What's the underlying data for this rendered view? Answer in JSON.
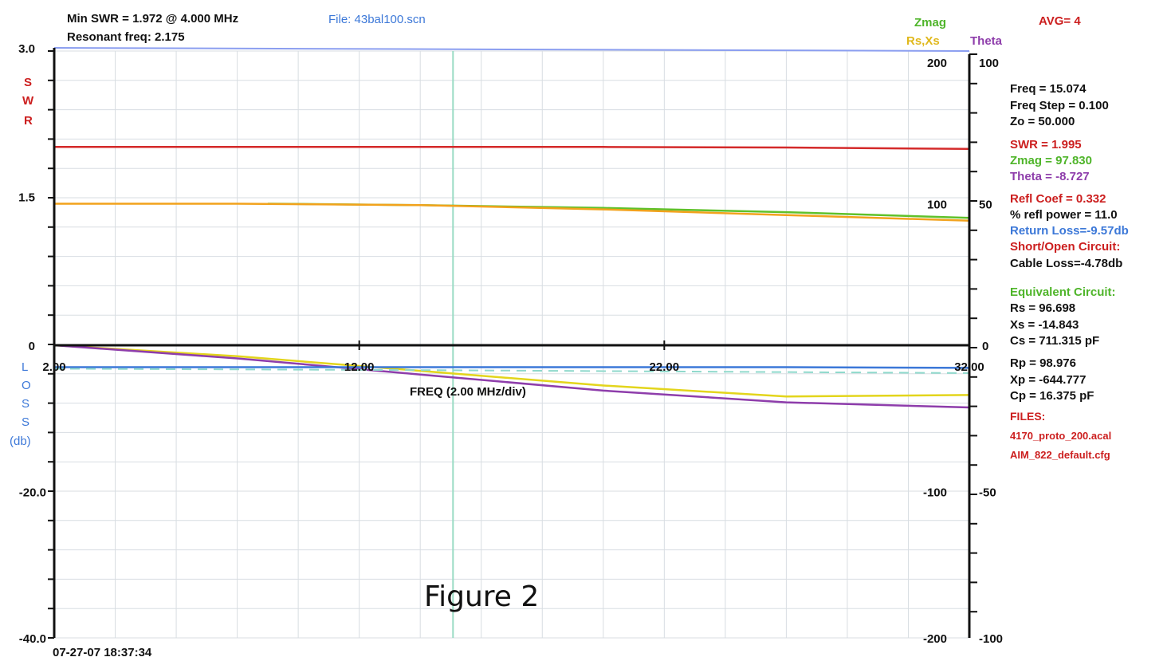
{
  "header": {
    "min_swr": "Min SWR = 1.972 @ 4.000 MHz",
    "resonant_freq": "Resonant freq: 2.175",
    "file": "File: 43bal100.scn",
    "avg": "AVG= 4",
    "zmag_legend": "Zmag",
    "rsxs_legend": "Rs,Xs",
    "theta_legend": "Theta"
  },
  "axes": {
    "swr_letters": [
      "S",
      "W",
      "R"
    ],
    "loss_letters": [
      "L",
      "O",
      "S",
      "S"
    ],
    "loss_unit": "(db)",
    "xlabel": "FREQ (2.00 MHz/div)",
    "timestamp": "07-27-07  18:37:34",
    "caption": "Figure 2"
  },
  "chart_data": {
    "type": "line",
    "x_range": [
      2.0,
      32.0
    ],
    "x_ticks": [
      {
        "value": 2.0,
        "label": "2.00"
      },
      {
        "value": 12.0,
        "label": "12.00"
      },
      {
        "value": 22.0,
        "label": "22.00"
      },
      {
        "value": 32.0,
        "label": "32.00"
      }
    ],
    "cursor_freq": 15.074,
    "swr_axis": {
      "range": [
        0,
        3.0
      ],
      "ticks": [
        {
          "v": 3.0,
          "label": "3.0"
        },
        {
          "v": 1.5,
          "label": "1.5"
        },
        {
          "v": 0,
          "label": "0"
        }
      ]
    },
    "loss_axis": {
      "range": [
        -40.0,
        0
      ],
      "ticks": [
        {
          "v": -20.0,
          "label": "-20.0"
        },
        {
          "v": -40.0,
          "label": "-40.0"
        }
      ]
    },
    "z_axis": {
      "range": [
        -200,
        200
      ],
      "ticks": [
        {
          "v": 200,
          "label": "200"
        },
        {
          "v": 100,
          "label": "100"
        },
        {
          "v": -100,
          "label": "-100"
        },
        {
          "v": -200,
          "label": "-200"
        }
      ]
    },
    "theta_axis": {
      "range": [
        -100,
        100
      ],
      "ticks": [
        {
          "v": 100,
          "label": "100"
        },
        {
          "v": 50,
          "label": "50"
        },
        {
          "v": 0,
          "label": "0"
        },
        {
          "v": -50,
          "label": "-50"
        },
        {
          "v": -100,
          "label": "-100"
        }
      ]
    },
    "series": [
      {
        "name": "SWR",
        "color": "#d42a2a",
        "axis": "swr",
        "x": [
          2,
          8,
          14,
          20,
          26,
          32
        ],
        "y": [
          2.0,
          2.0,
          2.0,
          2.0,
          1.995,
          1.98
        ]
      },
      {
        "name": "Zmag",
        "color": "#5fc12a",
        "axis": "z",
        "x": [
          9,
          14,
          20,
          26,
          32
        ],
        "y": [
          100,
          99,
          97,
          94,
          90
        ]
      },
      {
        "name": "Rs",
        "color": "#f2a21c",
        "axis": "z",
        "x": [
          2,
          8,
          14,
          20,
          26,
          32
        ],
        "y": [
          100,
          100,
          99,
          96,
          92,
          88
        ]
      },
      {
        "name": "Return Loss",
        "color": "#e3d51c",
        "axis": "loss",
        "x": [
          2,
          8,
          14,
          20,
          26,
          32
        ],
        "y": [
          0,
          -1.5,
          -3.5,
          -5.5,
          -7.0,
          -6.8
        ]
      },
      {
        "name": "Cable Loss",
        "color": "#8e3dab",
        "axis": "loss",
        "x": [
          2,
          8,
          14,
          20,
          26,
          32
        ],
        "y": [
          0,
          -1.8,
          -4.0,
          -6.2,
          -7.8,
          -8.5
        ]
      },
      {
        "name": "Xs",
        "color": "#3c78d8",
        "axis": "z",
        "x": [
          2,
          8,
          14,
          20,
          26,
          32
        ],
        "y": [
          -15,
          -15,
          -15,
          -15,
          -15,
          -15.5
        ]
      },
      {
        "name": "Theta",
        "color": "#8fd9cc",
        "axis": "theta",
        "dash": true,
        "x": [
          2,
          14,
          32
        ],
        "y": [
          -8,
          -8.5,
          -9.5
        ]
      }
    ]
  },
  "readout": {
    "freq": "Freq =  15.074",
    "freq_step": "Freq Step = 0.100",
    "zo": "Zo =    50.000",
    "swr": "SWR  =    1.995",
    "zmag": "Zmag =    97.830",
    "theta": "Theta =    -8.727",
    "refl_coef": "Refl Coef   = 0.332",
    "refl_power": "% refl power = 11.0",
    "return_loss": "Return Loss=-9.57db",
    "short_open": "Short/Open Circuit:",
    "cable_loss": "Cable Loss=-4.78db",
    "equiv_circuit": "Equivalent Circuit:",
    "rs": "Rs =   96.698",
    "xs": "Xs =  -14.843",
    "cs": "Cs =  711.315  pF",
    "rp": "Rp =   98.976",
    "xp": "Xp = -644.777",
    "cp": "Cp =   16.375  pF",
    "files_label": "FILES:",
    "file1": "4170_proto_200.acal",
    "file2": "AIM_822_default.cfg"
  },
  "colors": {
    "red": "#cc1f1f",
    "green": "#4fb52a",
    "purple": "#8e3dab",
    "blue": "#3c78d8",
    "orange": "#e0a01c",
    "grid": "#d8dde2",
    "cursor": "#9adcc4"
  }
}
